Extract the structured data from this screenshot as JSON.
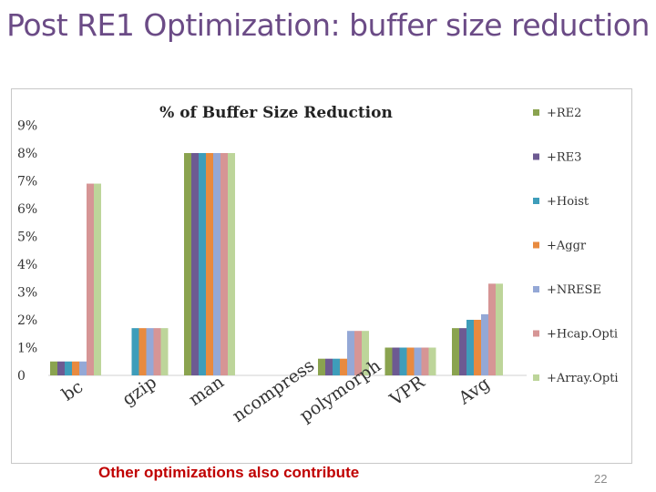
{
  "slide": {
    "title": "Post RE1 Optimization: buffer size reduction",
    "footer_note": "Other optimizations also contribute",
    "page_number": "22"
  },
  "chart_data": {
    "type": "bar",
    "title": "% of Buffer Size Reduction",
    "xlabel": "",
    "ylabel": "",
    "ylim": [
      0,
      10
    ],
    "y_tick_labels": [
      "0",
      "1%",
      "2%",
      "3%",
      "4%",
      "5%",
      "6%",
      "7%",
      "8%",
      "9%"
    ],
    "grid": false,
    "legend_position": "right",
    "categories": [
      "bc",
      "gzip",
      "man",
      "ncompress",
      "polymorph",
      "VPR",
      "Avg"
    ],
    "series": [
      {
        "name": "+RE2",
        "color": "#8aa34f",
        "values": [
          0.5,
          0,
          8.0,
          0,
          0.6,
          1.0,
          1.7
        ]
      },
      {
        "name": "+RE3",
        "color": "#6d5a92",
        "values": [
          0.5,
          0,
          8.0,
          0,
          0.6,
          1.0,
          1.7
        ]
      },
      {
        "name": "+Hoist",
        "color": "#3e9dba",
        "values": [
          0.5,
          1.7,
          8.0,
          0,
          0.6,
          1.0,
          2.0
        ]
      },
      {
        "name": "+Aggr",
        "color": "#e88a3f",
        "values": [
          0.5,
          1.7,
          8.0,
          0,
          0.6,
          1.0,
          2.0
        ]
      },
      {
        "name": "+NRESE",
        "color": "#94a8d6",
        "values": [
          0.5,
          1.7,
          8.0,
          0,
          1.6,
          1.0,
          2.2
        ]
      },
      {
        "name": "+Hcap.Opti",
        "color": "#d69595",
        "values": [
          6.9,
          1.7,
          8.0,
          0,
          1.6,
          1.0,
          3.3
        ]
      },
      {
        "name": "+Array.Opti",
        "color": "#bdd59a",
        "values": [
          6.9,
          1.7,
          8.0,
          0,
          1.6,
          1.0,
          3.3
        ]
      }
    ]
  }
}
